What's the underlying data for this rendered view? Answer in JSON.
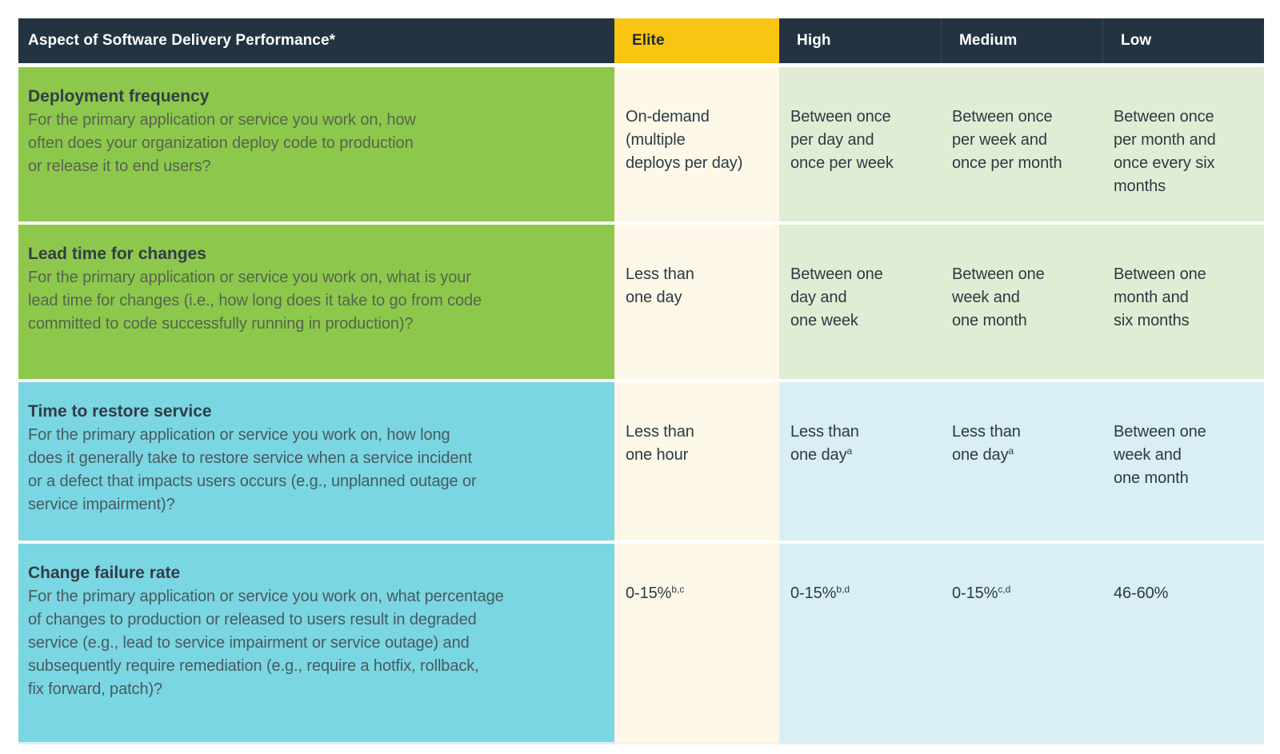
{
  "colors": {
    "page_bg": "#FFFFFF",
    "navy": "#233341",
    "yellow": "#F9C412",
    "green": "#8DC84C",
    "cream": "#FDF8E8",
    "pale_green": "#E0EDD4",
    "cyan": "#7AD6E2",
    "pale_blue": "#DAEEF5",
    "header_text": "#FFFFFF",
    "elite_header_text": "#1E2A33",
    "title_text": "#333D47",
    "desc_text_green": "#57644F",
    "desc_text_blue": "#475A61",
    "value_text": "#2C3A45"
  },
  "chart_data": {
    "type": "table",
    "header": {
      "aspect": "Aspect of Software Delivery Performance*",
      "levels": [
        "Elite",
        "High",
        "Medium",
        "Low"
      ]
    },
    "rows": [
      {
        "aspect": "Deployment frequency",
        "description": "For the primary application or service you work on, how\noften does your organization deploy code to production\nor release it to end users?",
        "cells": [
          {
            "text": "On-demand\n(multiple\ndeploys per day)",
            "sup": ""
          },
          {
            "text": "Between once\nper day and\nonce per week",
            "sup": ""
          },
          {
            "text": "Between once\nper week and\nonce per month",
            "sup": ""
          },
          {
            "text": "Between once\nper month and\nonce every six\nmonths",
            "sup": ""
          }
        ]
      },
      {
        "aspect": "Lead time for changes",
        "description": "For the primary application or service you work on, what is your\nlead time for changes (i.e., how long does it take to go from code\ncommitted to code successfully running in production)?",
        "cells": [
          {
            "text": "Less than\none day",
            "sup": ""
          },
          {
            "text": "Between one\nday and\none week",
            "sup": ""
          },
          {
            "text": "Between one\nweek and\none month",
            "sup": ""
          },
          {
            "text": "Between one\nmonth and\nsix months",
            "sup": ""
          }
        ]
      },
      {
        "aspect": "Time to restore service",
        "description": "For the primary application or service you work on, how long\ndoes it generally take to restore service when a service incident\nor a defect that impacts users occurs (e.g., unplanned outage or\nservice impairment)?",
        "cells": [
          {
            "text": "Less than\none hour",
            "sup": ""
          },
          {
            "text": "Less than\none day",
            "sup": "a"
          },
          {
            "text": "Less than\none day",
            "sup": "a"
          },
          {
            "text": "Between one\nweek and\none month",
            "sup": ""
          }
        ]
      },
      {
        "aspect": "Change failure rate",
        "description": "For the primary application or service you work on, what percentage\nof changes to production or released to users result in degraded\nservice (e.g., lead to service impairment or service outage) and\nsubsequently require remediation (e.g., require a hotfix, rollback,\nfix forward, patch)?",
        "cells": [
          {
            "text": "0-15%",
            "sup": "b,c"
          },
          {
            "text": "0-15%",
            "sup": "b,d"
          },
          {
            "text": "0-15%",
            "sup": "c,d"
          },
          {
            "text": "46-60%",
            "sup": ""
          }
        ]
      }
    ]
  }
}
